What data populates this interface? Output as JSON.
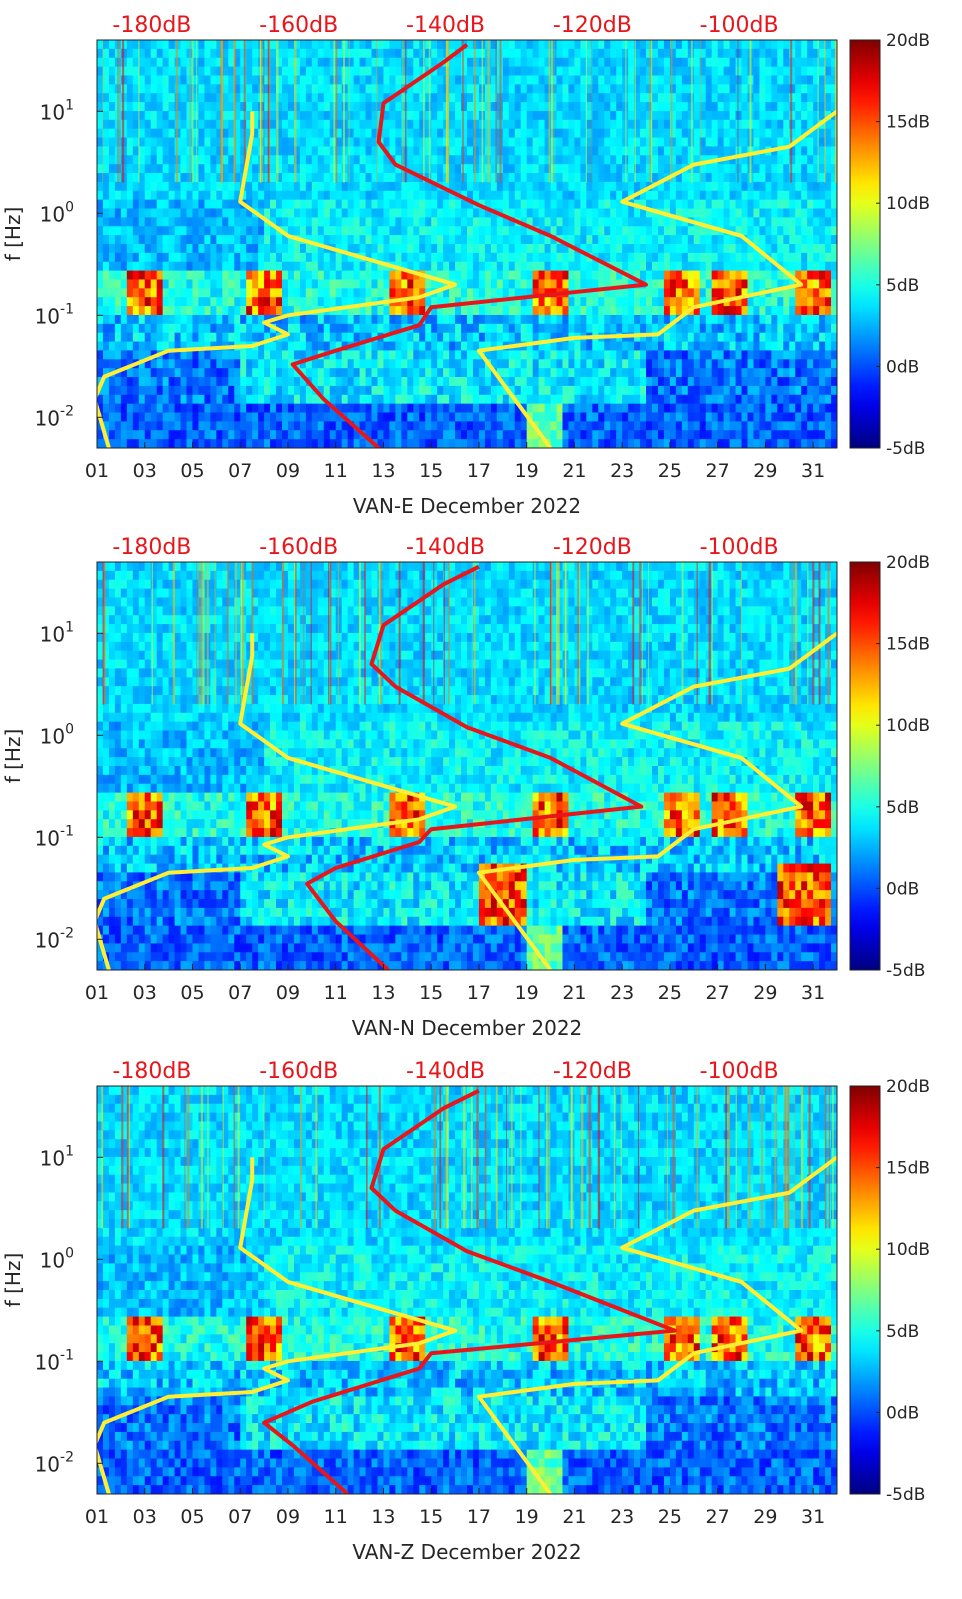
{
  "figure": {
    "y_axis_label": "f [Hz]",
    "x_tick_labels": [
      "01",
      "03",
      "05",
      "07",
      "09",
      "11",
      "13",
      "15",
      "17",
      "19",
      "21",
      "23",
      "25",
      "27",
      "29",
      "31"
    ],
    "y_tick_labels": [
      {
        "base": "10",
        "exp": "1",
        "value": 10
      },
      {
        "base": "10",
        "exp": "0",
        "value": 1
      },
      {
        "base": "10",
        "exp": "-1",
        "value": 0.1
      },
      {
        "base": "10",
        "exp": "-2",
        "value": 0.01
      }
    ],
    "top_scale_labels": [
      "-180dB",
      "-160dB",
      "-140dB",
      "-120dB",
      "-100dB"
    ],
    "colorbar_labels": [
      "20dB",
      "15dB",
      "10dB",
      "5dB",
      "0dB",
      "-5dB"
    ],
    "colors": {
      "model_curve": "#ffee33",
      "median_psd": "#e8161b",
      "top_scale_text": "#e8161b",
      "colormap": "jet"
    }
  },
  "chart_data": [
    {
      "type": "heatmap",
      "xlabel": "VAN-E December 2022",
      "ylabel": "f [Hz]",
      "x_range_day": [
        1,
        32
      ],
      "ylim_hz": [
        0.005,
        50
      ],
      "y_scale": "log",
      "colorbar_range_db": [
        -5,
        20
      ],
      "top_axis_labels": [
        "-180dB",
        "-160dB",
        "-140dB",
        "-120dB",
        "-100dB"
      ],
      "series": [
        {
          "values_hz_day": [
            [
              1.5,
              0.005
            ],
            [
              0.9,
              0.015
            ],
            [
              1.3,
              0.025
            ],
            [
              4,
              0.045
            ],
            [
              7.5,
              0.05
            ],
            [
              9,
              0.065
            ],
            [
              8,
              0.085
            ],
            [
              9,
              0.1
            ],
            [
              14.5,
              0.15
            ],
            [
              16,
              0.2
            ],
            [
              9,
              0.6
            ],
            [
              7,
              1.3
            ],
            [
              7.5,
              6
            ],
            [
              7.5,
              10
            ]
          ]
        },
        {
          "values_hz_day": [
            [
              20,
              0.005
            ],
            [
              17,
              0.045
            ],
            [
              21,
              0.06
            ],
            [
              24.5,
              0.065
            ],
            [
              26,
              0.12
            ],
            [
              30.5,
              0.2
            ],
            [
              28,
              0.6
            ],
            [
              23,
              1.3
            ],
            [
              26,
              3
            ],
            [
              30,
              4.5
            ],
            [
              32,
              10
            ]
          ]
        },
        {
          "values_hz_day": [
            [
              12.8,
              0.005
            ],
            [
              10.5,
              0.015
            ],
            [
              9.2,
              0.033
            ],
            [
              11,
              0.045
            ],
            [
              14.5,
              0.08
            ],
            [
              15,
              0.12
            ],
            [
              24,
              0.2
            ],
            [
              20,
              0.6
            ],
            [
              17,
              1.2
            ],
            [
              13.5,
              3
            ],
            [
              12.8,
              5
            ],
            [
              13,
              12
            ],
            [
              15.5,
              30
            ],
            [
              16.5,
              45
            ]
          ]
        }
      ]
    },
    {
      "type": "heatmap",
      "xlabel": "VAN-N December 2022",
      "ylabel": "f [Hz]",
      "x_range_day": [
        1,
        32
      ],
      "ylim_hz": [
        0.005,
        50
      ],
      "y_scale": "log",
      "colorbar_range_db": [
        -5,
        20
      ],
      "top_axis_labels": [
        "-180dB",
        "-160dB",
        "-140dB",
        "-120dB",
        "-100dB"
      ],
      "series": [
        {
          "values_hz_day": [
            [
              1.5,
              0.005
            ],
            [
              0.9,
              0.015
            ],
            [
              1.3,
              0.025
            ],
            [
              4,
              0.045
            ],
            [
              7.5,
              0.05
            ],
            [
              9,
              0.065
            ],
            [
              8,
              0.085
            ],
            [
              9,
              0.1
            ],
            [
              14.5,
              0.15
            ],
            [
              16,
              0.2
            ],
            [
              9,
              0.6
            ],
            [
              7,
              1.3
            ],
            [
              7.5,
              6
            ],
            [
              7.5,
              10
            ]
          ]
        },
        {
          "values_hz_day": [
            [
              20,
              0.005
            ],
            [
              17,
              0.045
            ],
            [
              21,
              0.06
            ],
            [
              24.5,
              0.065
            ],
            [
              26,
              0.12
            ],
            [
              30.5,
              0.2
            ],
            [
              28,
              0.6
            ],
            [
              23,
              1.3
            ],
            [
              26,
              3
            ],
            [
              30,
              4.5
            ],
            [
              32,
              10
            ]
          ]
        },
        {
          "values_hz_day": [
            [
              13.2,
              0.005
            ],
            [
              11,
              0.015
            ],
            [
              9.8,
              0.035
            ],
            [
              11,
              0.05
            ],
            [
              14.5,
              0.09
            ],
            [
              15,
              0.12
            ],
            [
              23.8,
              0.2
            ],
            [
              20,
              0.6
            ],
            [
              16.5,
              1.2
            ],
            [
              13.5,
              3
            ],
            [
              12.5,
              5
            ],
            [
              13,
              12
            ],
            [
              15.5,
              30
            ],
            [
              17,
              45
            ]
          ]
        }
      ]
    },
    {
      "type": "heatmap",
      "xlabel": "VAN-Z December 2022",
      "ylabel": "f [Hz]",
      "x_range_day": [
        1,
        32
      ],
      "ylim_hz": [
        0.005,
        50
      ],
      "y_scale": "log",
      "colorbar_range_db": [
        -5,
        20
      ],
      "top_axis_labels": [
        "-180dB",
        "-160dB",
        "-140dB",
        "-120dB",
        "-100dB"
      ],
      "series": [
        {
          "values_hz_day": [
            [
              1.5,
              0.005
            ],
            [
              0.9,
              0.015
            ],
            [
              1.3,
              0.025
            ],
            [
              4,
              0.045
            ],
            [
              7.5,
              0.05
            ],
            [
              9,
              0.065
            ],
            [
              8,
              0.085
            ],
            [
              9,
              0.1
            ],
            [
              14.5,
              0.15
            ],
            [
              16,
              0.2
            ],
            [
              9,
              0.6
            ],
            [
              7,
              1.3
            ],
            [
              7.5,
              6
            ],
            [
              7.5,
              10
            ]
          ]
        },
        {
          "values_hz_day": [
            [
              20,
              0.005
            ],
            [
              17,
              0.045
            ],
            [
              21,
              0.06
            ],
            [
              24.5,
              0.065
            ],
            [
              26,
              0.12
            ],
            [
              30.5,
              0.2
            ],
            [
              28,
              0.6
            ],
            [
              23,
              1.3
            ],
            [
              26,
              3
            ],
            [
              30,
              4.5
            ],
            [
              32,
              10
            ]
          ]
        },
        {
          "values_hz_day": [
            [
              11.5,
              0.005
            ],
            [
              9.2,
              0.015
            ],
            [
              8,
              0.025
            ],
            [
              10,
              0.04
            ],
            [
              14.5,
              0.085
            ],
            [
              15,
              0.12
            ],
            [
              25.2,
              0.2
            ],
            [
              20,
              0.6
            ],
            [
              16.5,
              1.2
            ],
            [
              13.5,
              3
            ],
            [
              12.5,
              5
            ],
            [
              13,
              12
            ],
            [
              15.5,
              30
            ],
            [
              17,
              45
            ]
          ]
        }
      ]
    }
  ]
}
